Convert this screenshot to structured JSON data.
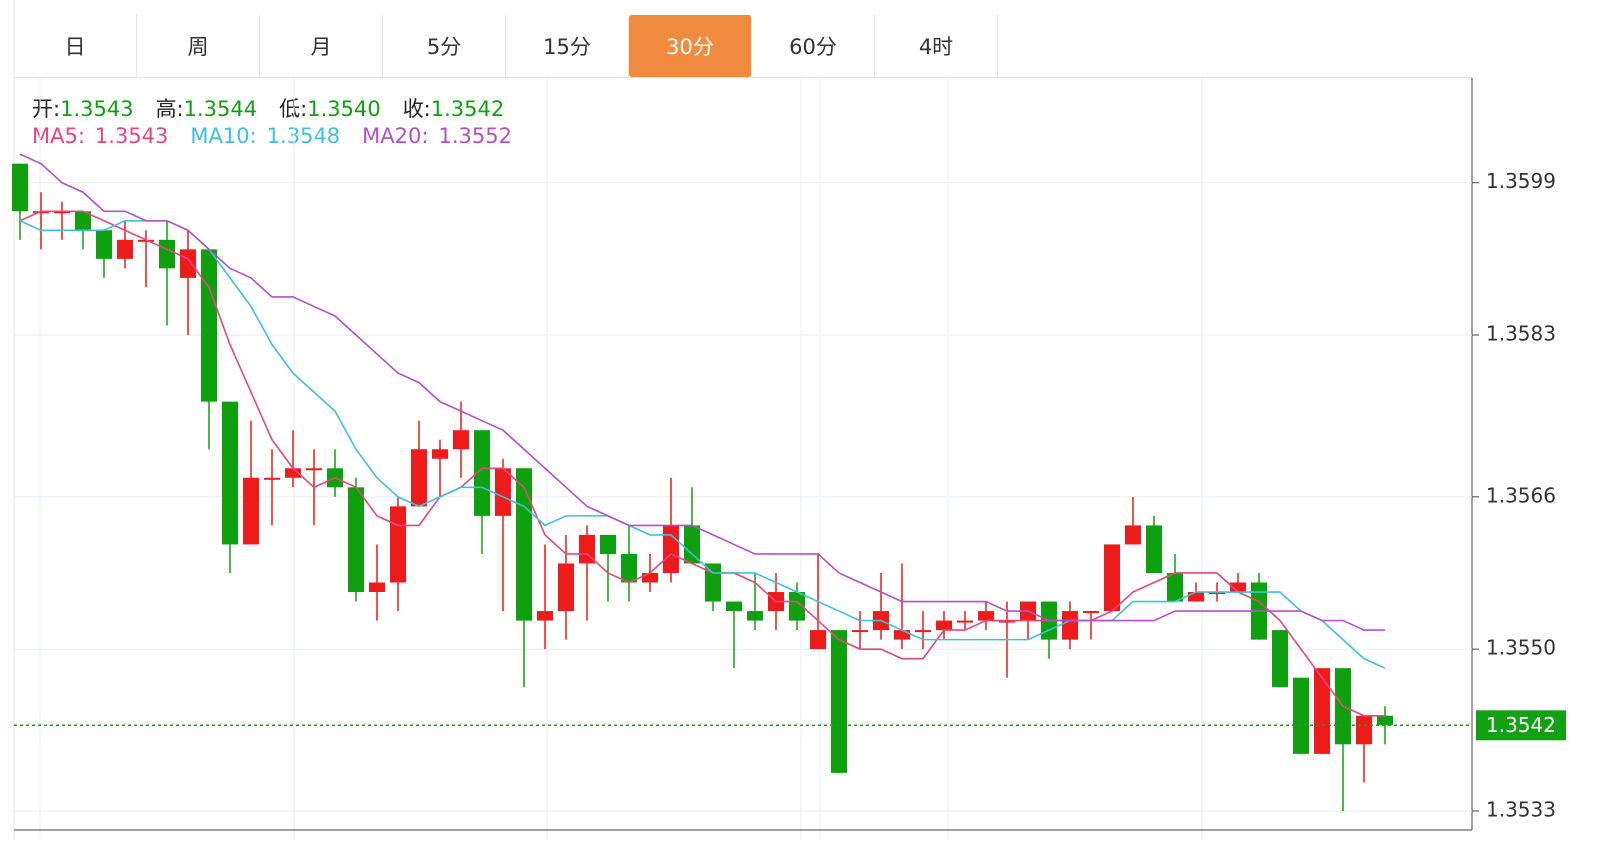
{
  "tabs": [
    "日",
    "周",
    "月",
    "5分",
    "15分",
    "30分",
    "60分",
    "4时"
  ],
  "active_tab": 5,
  "chart_data": {
    "type": "candlestick",
    "info": [
      {
        "label": "开:",
        "value": "1.3543"
      },
      {
        "label": "高:",
        "value": "1.3544"
      },
      {
        "label": "低:",
        "value": "1.3540"
      },
      {
        "label": "收:",
        "value": "1.3542"
      }
    ],
    "up_color": "#ee1b1b",
    "down_color": "#0ea00e",
    "candles": {
      "open": [
        1.3601,
        1.3596,
        1.3596,
        1.3596,
        1.3594,
        1.3591,
        1.3593,
        1.3593,
        1.3589,
        1.3592,
        1.3576,
        1.3561,
        1.3568,
        1.3568,
        1.3569,
        1.3569,
        1.3567,
        1.3556,
        1.3557,
        1.3565,
        1.357,
        1.3571,
        1.3573,
        1.3564,
        1.3569,
        1.3553,
        1.3554,
        1.3559,
        1.3562,
        1.356,
        1.3557,
        1.3558,
        1.3563,
        1.3559,
        1.3555,
        1.3554,
        1.3554,
        1.3556,
        1.355,
        1.3552,
        1.3552,
        1.3552,
        1.3551,
        1.3552,
        1.3552,
        1.3553,
        1.3553,
        1.3553,
        1.3553,
        1.3555,
        1.3551,
        1.3554,
        1.3554,
        1.3561,
        1.3563,
        1.3558,
        1.3555,
        1.3556,
        1.3556,
        1.3557,
        1.3552,
        1.3547,
        1.3539,
        1.3548,
        1.354,
        1.3543
      ],
      "high": [
        1.3601,
        1.3598,
        1.3597,
        1.3596,
        1.3594,
        1.3595,
        1.3594,
        1.3595,
        1.3594,
        1.3592,
        1.3576,
        1.3574,
        1.3571,
        1.3573,
        1.3571,
        1.3571,
        1.3568,
        1.3561,
        1.3566,
        1.3574,
        1.3572,
        1.3576,
        1.3573,
        1.357,
        1.3569,
        1.3561,
        1.3562,
        1.3563,
        1.3562,
        1.3563,
        1.356,
        1.3568,
        1.3567,
        1.3559,
        1.3555,
        1.3558,
        1.3558,
        1.3557,
        1.356,
        1.3552,
        1.3554,
        1.3558,
        1.3559,
        1.3554,
        1.3554,
        1.3554,
        1.3555,
        1.3555,
        1.3555,
        1.3555,
        1.3555,
        1.3554,
        1.3561,
        1.3566,
        1.3564,
        1.356,
        1.3557,
        1.3557,
        1.3558,
        1.3558,
        1.3552,
        1.3547,
        1.3548,
        1.3548,
        1.3543,
        1.3544
      ],
      "low": [
        1.3593,
        1.3592,
        1.3593,
        1.3592,
        1.3589,
        1.359,
        1.3588,
        1.3584,
        1.3583,
        1.3571,
        1.3558,
        1.3561,
        1.3563,
        1.3567,
        1.3563,
        1.3566,
        1.3555,
        1.3553,
        1.3554,
        1.3565,
        1.3566,
        1.3568,
        1.356,
        1.3554,
        1.3546,
        1.355,
        1.3551,
        1.3553,
        1.3555,
        1.3555,
        1.3556,
        1.3557,
        1.3559,
        1.3554,
        1.3548,
        1.3552,
        1.3552,
        1.3552,
        1.355,
        1.3537,
        1.355,
        1.3551,
        1.355,
        1.355,
        1.3551,
        1.3552,
        1.3552,
        1.3547,
        1.3551,
        1.3549,
        1.355,
        1.3551,
        1.3554,
        1.3561,
        1.3558,
        1.3555,
        1.3555,
        1.3555,
        1.3556,
        1.3551,
        1.3546,
        1.3539,
        1.3539,
        1.3533,
        1.3536,
        1.354
      ],
      "close": [
        1.3596,
        1.3596,
        1.3596,
        1.3594,
        1.3591,
        1.3593,
        1.3593,
        1.359,
        1.3592,
        1.3576,
        1.3561,
        1.3568,
        1.3568,
        1.3569,
        1.3569,
        1.3567,
        1.3556,
        1.3557,
        1.3565,
        1.3571,
        1.3571,
        1.3573,
        1.3564,
        1.3569,
        1.3553,
        1.3554,
        1.3559,
        1.3562,
        1.356,
        1.3557,
        1.3558,
        1.3563,
        1.3559,
        1.3555,
        1.3554,
        1.3553,
        1.3556,
        1.3553,
        1.3552,
        1.3537,
        1.3552,
        1.3554,
        1.3552,
        1.3552,
        1.3553,
        1.3553,
        1.3554,
        1.3553,
        1.3555,
        1.3551,
        1.3554,
        1.3554,
        1.3561,
        1.3563,
        1.3558,
        1.3555,
        1.3556,
        1.3556,
        1.3557,
        1.3551,
        1.3546,
        1.3539,
        1.3548,
        1.354,
        1.3543,
        1.3542
      ]
    },
    "series": [
      {
        "name": "MA5:",
        "color": "#e8457f",
        "last_value": "1.3543",
        "values": [
          1.3595,
          1.3596,
          1.3596,
          1.3596,
          1.3595,
          1.3594,
          1.3593,
          1.3592,
          1.3591,
          1.3588,
          1.3582,
          1.3577,
          1.3572,
          1.3569,
          1.3567,
          1.3568,
          1.3567,
          1.3564,
          1.3563,
          1.3563,
          1.3566,
          1.3567,
          1.3569,
          1.3569,
          1.3567,
          1.3562,
          1.356,
          1.356,
          1.3558,
          1.3557,
          1.3558,
          1.356,
          1.3559,
          1.3558,
          1.3558,
          1.3557,
          1.3555,
          1.3555,
          1.3553,
          1.3551,
          1.355,
          1.355,
          1.3549,
          1.3549,
          1.3552,
          1.3552,
          1.3553,
          1.3553,
          1.3553,
          1.3553,
          1.3553,
          1.3553,
          1.3554,
          1.3556,
          1.3557,
          1.3558,
          1.3558,
          1.3558,
          1.3556,
          1.3555,
          1.3553,
          1.355,
          1.3547,
          1.3544,
          1.3543,
          1.3543
        ]
      },
      {
        "name": "MA10:",
        "color": "#3ec1d8",
        "last_value": "1.3548",
        "values": [
          1.3595,
          1.3594,
          1.3594,
          1.3594,
          1.3594,
          1.3595,
          1.3595,
          1.3595,
          1.3594,
          1.3592,
          1.3589,
          1.3586,
          1.3582,
          1.3579,
          1.3577,
          1.3575,
          1.3571,
          1.3568,
          1.3566,
          1.3565,
          1.3566,
          1.3567,
          1.3567,
          1.3566,
          1.3565,
          1.3563,
          1.3564,
          1.3564,
          1.3564,
          1.3563,
          1.3562,
          1.3562,
          1.356,
          1.3558,
          1.3558,
          1.3558,
          1.3557,
          1.3556,
          1.3555,
          1.3554,
          1.3553,
          1.3553,
          1.3552,
          1.3551,
          1.3551,
          1.3551,
          1.3551,
          1.3551,
          1.3551,
          1.3552,
          1.3553,
          1.3553,
          1.3553,
          1.3555,
          1.3555,
          1.3555,
          1.3556,
          1.3556,
          1.3556,
          1.3556,
          1.3556,
          1.3554,
          1.3553,
          1.3551,
          1.3549,
          1.3548
        ]
      },
      {
        "name": "MA20:",
        "color": "#b350c8",
        "last_value": "1.3552",
        "values": [
          1.3602,
          1.3601,
          1.3599,
          1.3598,
          1.3596,
          1.3596,
          1.3595,
          1.3595,
          1.3594,
          1.3592,
          1.359,
          1.3589,
          1.3587,
          1.3587,
          1.3586,
          1.3585,
          1.3583,
          1.3581,
          1.3579,
          1.3578,
          1.3576,
          1.3575,
          1.3574,
          1.3573,
          1.3571,
          1.3569,
          1.3567,
          1.3565,
          1.3564,
          1.3563,
          1.3563,
          1.3563,
          1.3563,
          1.3562,
          1.3561,
          1.356,
          1.356,
          1.356,
          1.356,
          1.3558,
          1.3557,
          1.3556,
          1.3555,
          1.3555,
          1.3555,
          1.3555,
          1.3555,
          1.3554,
          1.3554,
          1.3553,
          1.3553,
          1.3553,
          1.3553,
          1.3553,
          1.3553,
          1.3554,
          1.3554,
          1.3554,
          1.3554,
          1.3554,
          1.3554,
          1.3554,
          1.3553,
          1.3553,
          1.3552,
          1.3552
        ]
      }
    ],
    "last_price": 1.3542,
    "ylim": [
      1.3531,
      1.361
    ],
    "yticks": [
      1.3599,
      1.3583,
      1.3566,
      {
        "value": 1.355,
        "label": "1.3550"
      },
      1.3533
    ],
    "grid": true
  }
}
